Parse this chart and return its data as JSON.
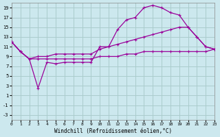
{
  "xlabel": "Windchill (Refroidissement éolien,°C)",
  "background_color": "#cce8ee",
  "grid_color": "#aacccc",
  "line_color": "#990099",
  "xlim": [
    0,
    23
  ],
  "ylim": [
    -4,
    20
  ],
  "xticks": [
    0,
    1,
    2,
    3,
    4,
    5,
    6,
    7,
    8,
    9,
    10,
    11,
    12,
    13,
    14,
    15,
    16,
    17,
    18,
    19,
    20,
    21,
    22,
    23
  ],
  "yticks": [
    -3,
    -1,
    1,
    3,
    5,
    7,
    9,
    11,
    13,
    15,
    17,
    19
  ],
  "curve_top_x": [
    0,
    1,
    2,
    3,
    4,
    5,
    6,
    7,
    8,
    9,
    10,
    11,
    12,
    13,
    14,
    15,
    16,
    17,
    18,
    19,
    20,
    21,
    22,
    23
  ],
  "curve_top_y": [
    12,
    10,
    8.5,
    2.5,
    7.8,
    7.5,
    7.8,
    7.8,
    7.8,
    7.8,
    11,
    11,
    14.5,
    16.5,
    17,
    19,
    19.5,
    19,
    18,
    17.5,
    15,
    13,
    11,
    10.5
  ],
  "curve_mid_x": [
    0,
    1,
    2,
    3,
    4,
    5,
    6,
    7,
    8,
    9,
    10,
    11,
    12,
    13,
    14,
    15,
    16,
    17,
    18,
    19,
    20,
    21,
    22,
    23
  ],
  "curve_mid_y": [
    12,
    10,
    8.5,
    9,
    9,
    9.5,
    9.5,
    9.5,
    9.5,
    9.5,
    10.5,
    11,
    11.5,
    12,
    12.5,
    13,
    13.5,
    14,
    14.5,
    15,
    15,
    13,
    11,
    10.5
  ],
  "curve_bot_x": [
    0,
    1,
    2,
    3,
    4,
    5,
    6,
    7,
    8,
    9,
    10,
    11,
    12,
    13,
    14,
    15,
    16,
    17,
    18,
    19,
    20,
    21,
    22,
    23
  ],
  "curve_bot_y": [
    12,
    10,
    8.5,
    8.5,
    8.5,
    8.5,
    8.5,
    8.5,
    8.5,
    8.5,
    9,
    9,
    9,
    9.5,
    9.5,
    10,
    10,
    10,
    10,
    10,
    10,
    10,
    10,
    10.5
  ]
}
